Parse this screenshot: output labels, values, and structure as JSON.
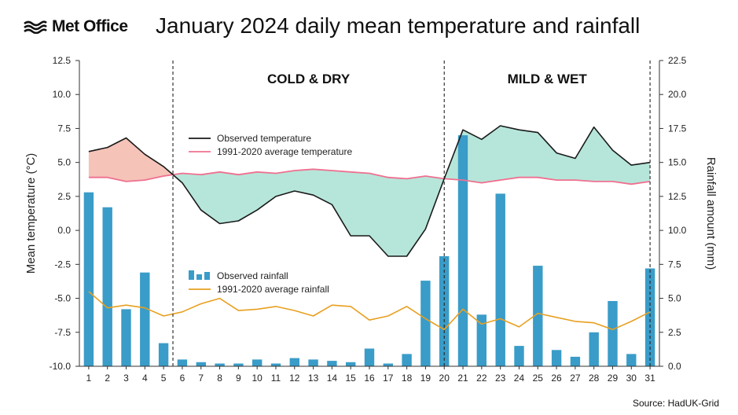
{
  "header": {
    "logo_text": "Met Office",
    "title": "January 2024 daily mean temperature and rainfall"
  },
  "footer": {
    "source": "Source: HadUK-Grid"
  },
  "colors": {
    "observed_temperature": "#1a1a1a",
    "average_temperature": "#f07090",
    "above_average_fill": "#f5c3b8",
    "below_average_fill": "#b6e6da",
    "observed_rainfall": "#3a9cc8",
    "average_rainfall": "#e8a020"
  },
  "chart_data": {
    "type": "bar+line",
    "x": [
      1,
      2,
      3,
      4,
      5,
      6,
      7,
      8,
      9,
      10,
      11,
      12,
      13,
      14,
      15,
      16,
      17,
      18,
      19,
      20,
      21,
      22,
      23,
      24,
      25,
      26,
      27,
      28,
      29,
      30,
      31
    ],
    "x_ticks": [
      "1",
      "2",
      "3",
      "4",
      "5",
      "6",
      "7",
      "8",
      "9",
      "10",
      "11",
      "12",
      "13",
      "14",
      "15",
      "16",
      "17",
      "18",
      "19",
      "20",
      "21",
      "22",
      "23",
      "24",
      "25",
      "26",
      "27",
      "28",
      "29",
      "30",
      "31"
    ],
    "ylabel_left": "Mean temperature (°C)",
    "ylabel_right": "Rainfall amount (mm)",
    "ylim_left": [
      -10.0,
      12.5
    ],
    "ylim_right": [
      0.0,
      22.5
    ],
    "yticks_left": [
      "-10.0",
      "-7.5",
      "-5.0",
      "-2.5",
      "0.0",
      "2.5",
      "5.0",
      "7.5",
      "10.0",
      "12.5"
    ],
    "yticks_right": [
      "0.0",
      "2.5",
      "5.0",
      "7.5",
      "10.0",
      "12.5",
      "15.0",
      "17.5",
      "20.0",
      "22.5"
    ],
    "periods": [
      {
        "label": "COLD & DRY",
        "start_boundary": 5.5,
        "end_boundary": 20
      },
      {
        "label": "MILD & WET",
        "start_boundary": 20,
        "end_boundary": 31
      }
    ],
    "series": [
      {
        "name": "Observed temperature",
        "kind": "line",
        "axis": "left",
        "values": [
          5.8,
          6.1,
          6.8,
          5.6,
          4.7,
          3.5,
          1.5,
          0.5,
          0.7,
          1.5,
          2.5,
          2.9,
          2.6,
          1.9,
          -0.4,
          -0.4,
          -1.9,
          -1.9,
          0.1,
          3.8,
          7.4,
          6.7,
          7.7,
          7.4,
          7.2,
          5.7,
          5.3,
          7.6,
          5.9,
          4.8,
          5.0
        ]
      },
      {
        "name": "1991-2020 average temperature",
        "kind": "line",
        "axis": "left",
        "values": [
          3.9,
          3.9,
          3.6,
          3.7,
          4.0,
          4.2,
          4.1,
          4.3,
          4.1,
          4.3,
          4.2,
          4.4,
          4.5,
          4.4,
          4.3,
          4.2,
          3.9,
          3.8,
          4.0,
          3.8,
          3.7,
          3.5,
          3.7,
          3.9,
          3.9,
          3.7,
          3.7,
          3.6,
          3.6,
          3.4,
          3.6
        ]
      },
      {
        "name": "Observed rainfall",
        "kind": "bar",
        "axis": "right",
        "values": [
          12.8,
          11.7,
          4.2,
          6.9,
          1.7,
          0.5,
          0.3,
          0.2,
          0.2,
          0.5,
          0.2,
          0.6,
          0.5,
          0.4,
          0.3,
          1.3,
          0.2,
          0.9,
          6.3,
          8.1,
          17.0,
          3.8,
          12.7,
          1.5,
          7.4,
          1.2,
          0.7,
          2.5,
          4.8,
          0.9,
          7.2
        ]
      },
      {
        "name": "1991-2020 average rainfall",
        "kind": "line",
        "axis": "right",
        "values": [
          5.5,
          4.3,
          4.5,
          4.3,
          3.7,
          4.0,
          4.6,
          5.0,
          4.1,
          4.2,
          4.4,
          4.1,
          3.7,
          4.5,
          4.4,
          3.4,
          3.7,
          4.4,
          3.5,
          2.7,
          4.2,
          3.1,
          3.5,
          2.9,
          3.9,
          3.6,
          3.3,
          3.2,
          2.7,
          3.3,
          4.0
        ]
      }
    ]
  }
}
